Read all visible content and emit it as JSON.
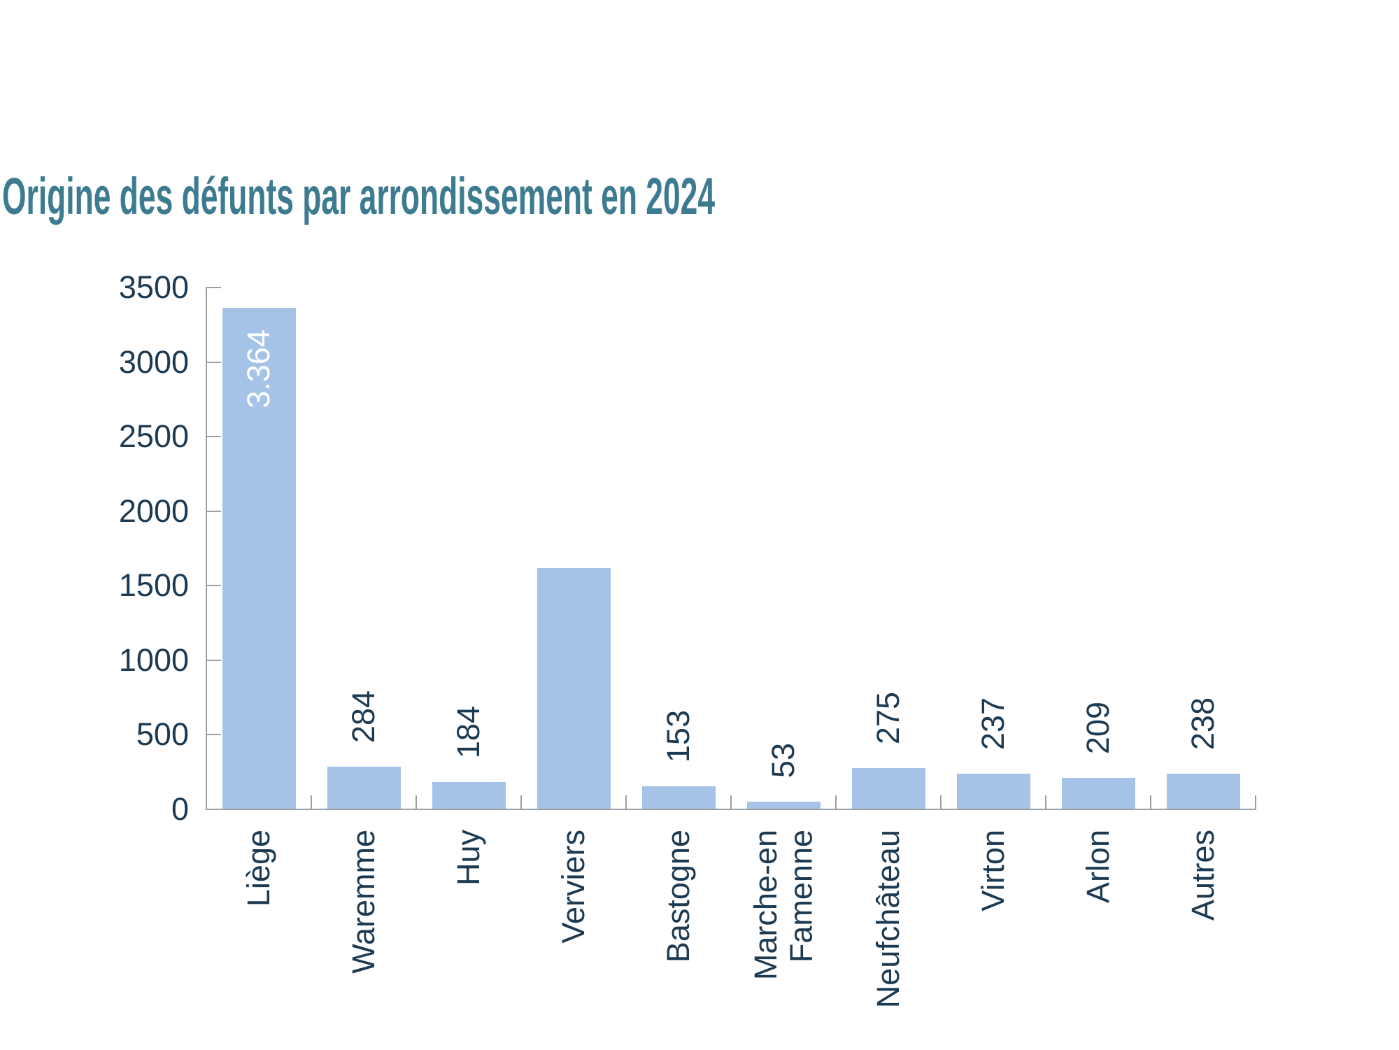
{
  "chart_data": {
    "type": "bar",
    "title": "Origine des défunts par arrondissement en 2024",
    "xlabel": "",
    "ylabel": "",
    "legend": "none",
    "grid": false,
    "y_axis": {
      "min": 0,
      "max": 3500,
      "tick_step": 500,
      "ticks": [
        0,
        500,
        1000,
        1500,
        2000,
        2500,
        3000,
        3500
      ]
    },
    "categories": [
      "Liège",
      "Waremme",
      "Huy",
      "Verviers",
      "Bastogne",
      "Marche-en Famenne",
      "Neufchâteau",
      "Virton",
      "Arlon",
      "Autres"
    ],
    "bars": [
      {
        "label": "Liège",
        "label_lines": [
          "Liège"
        ],
        "value": 3364,
        "display_value": "3.364",
        "display_position": "inside"
      },
      {
        "label": "Waremme",
        "label_lines": [
          "Waremme"
        ],
        "value": 284,
        "display_value": "284",
        "display_position": "above"
      },
      {
        "label": "Huy",
        "label_lines": [
          "Huy"
        ],
        "value": 184,
        "display_value": "184",
        "display_position": "above"
      },
      {
        "label": "Verviers",
        "label_lines": [
          "Verviers"
        ],
        "value": 1620,
        "display_value": "",
        "display_position": "none",
        "value_estimated_from_bar_height": true
      },
      {
        "label": "Bastogne",
        "label_lines": [
          "Bastogne"
        ],
        "value": 153,
        "display_value": "153",
        "display_position": "above"
      },
      {
        "label": "Marche-en Famenne",
        "label_lines": [
          "Marche-en",
          "Famenne"
        ],
        "value": 53,
        "display_value": "53",
        "display_position": "above"
      },
      {
        "label": "Neufchâteau",
        "label_lines": [
          "Neufchâteau"
        ],
        "value": 275,
        "display_value": "275",
        "display_position": "above"
      },
      {
        "label": "Virton",
        "label_lines": [
          "Virton"
        ],
        "value": 237,
        "display_value": "237",
        "display_position": "above"
      },
      {
        "label": "Arlon",
        "label_lines": [
          "Arlon"
        ],
        "value": 209,
        "display_value": "209",
        "display_position": "above"
      },
      {
        "label": "Autres",
        "label_lines": [
          "Autres"
        ],
        "value": 238,
        "display_value": "238",
        "display_position": "above"
      }
    ],
    "colors": {
      "bar_fill": "#A4C3E7",
      "title_text": "#3D7B90",
      "axis_label_text": "#1C3A52",
      "axis_line": "#9AA0A4",
      "inside_bar_value_text": "#FFFFFF"
    }
  }
}
